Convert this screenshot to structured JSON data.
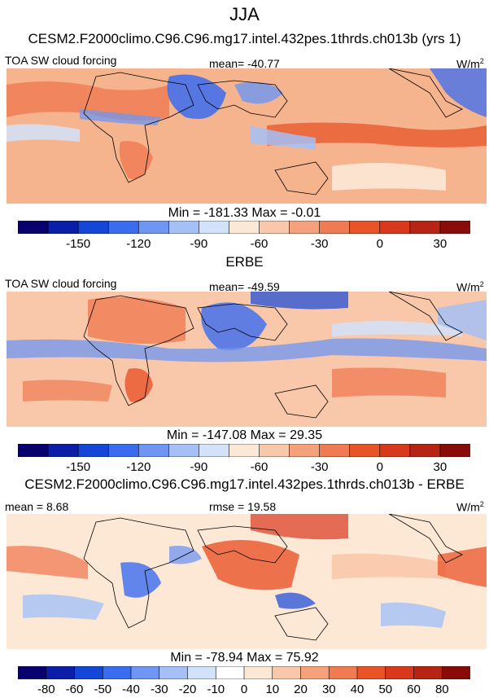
{
  "title": "JJA",
  "chart_data": [
    {
      "type": "heatmap",
      "title": "CESM2.F2000climo.C96.C96.mg17.intel.432pes.1thrds.ch013b (yrs 1)",
      "left_label": "TOA SW cloud forcing",
      "center_label": "mean= -40.77",
      "units": "W/m",
      "units_sup": "2",
      "min_max": "Min = -181.33 Max =  -0.01",
      "colorbar_ticks": [
        "-150",
        "-120",
        "-90",
        "-60",
        "-30",
        "0",
        "30"
      ],
      "colorbar_levels": 15
    },
    {
      "type": "heatmap",
      "title": "ERBE",
      "left_label": "TOA SW cloud forcing",
      "center_label": "mean= -49.59",
      "units": "W/m",
      "units_sup": "2",
      "min_max": "Min = -147.08 Max =  29.35",
      "colorbar_ticks": [
        "-150",
        "-120",
        "-90",
        "-60",
        "-30",
        "0",
        "30"
      ],
      "colorbar_levels": 15
    },
    {
      "type": "heatmap",
      "title": "CESM2.F2000climo.C96.C96.mg17.intel.432pes.1thrds.ch013b - ERBE",
      "left_label": "mean =  8.68",
      "center_label": "rmse =  19.58",
      "units": "W/m",
      "units_sup": "2",
      "min_max": "Min = -78.94 Max =  75.92",
      "colorbar_ticks": [
        "-80",
        "-60",
        "-50",
        "-40",
        "-30",
        "-20",
        "-10",
        "0",
        "10",
        "20",
        "30",
        "40",
        "50",
        "60",
        "80"
      ],
      "colorbar_levels": 16
    }
  ],
  "colors": {
    "colorbar_15": [
      "#08006e",
      "#0a1ea8",
      "#1446d8",
      "#3a6cf0",
      "#6e96f2",
      "#a4c0f6",
      "#d2e2fa",
      "#fde8d6",
      "#f9c8aa",
      "#f5a27c",
      "#f07a52",
      "#e85428",
      "#d8381c",
      "#b82414",
      "#8a0c08"
    ],
    "colorbar_16": [
      "#08006e",
      "#0a1ea8",
      "#1446d8",
      "#3a6cf0",
      "#6e96f2",
      "#a4c0f6",
      "#d2e2fa",
      "#ffffff",
      "#fde8d6",
      "#f9c8aa",
      "#f5a27c",
      "#f07a52",
      "#e85428",
      "#d8381c",
      "#b82414",
      "#8a0c08"
    ]
  }
}
